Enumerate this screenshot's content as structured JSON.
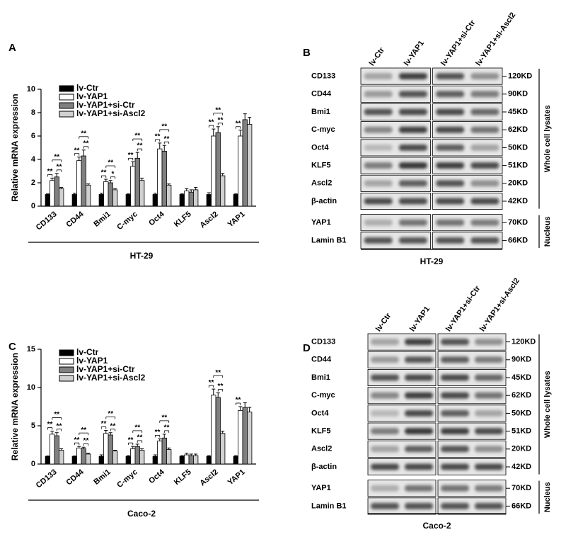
{
  "chart_data": [
    {
      "type": "bar",
      "panel": "A",
      "ylabel": "Relative mRNA expression",
      "xlabel": "HT-29",
      "categories": [
        "CD133",
        "CD44",
        "Bmi1",
        "C-myc",
        "Oct4",
        "KLF5",
        "Ascl2",
        "YAP1"
      ],
      "ylim": [
        0,
        10
      ],
      "yticks": [
        0,
        2,
        4,
        6,
        8,
        10
      ],
      "series": [
        {
          "name": "lv-Ctr",
          "color": "#000000",
          "values": [
            1,
            1,
            1,
            1,
            1,
            1,
            1,
            1
          ],
          "errors": [
            0.05,
            0.1,
            0.1,
            0.05,
            0.1,
            0.05,
            0.15,
            0.05
          ]
        },
        {
          "name": "lv-YAP1",
          "color": "#ffffff",
          "values": [
            2.2,
            3.9,
            2.1,
            3.4,
            4.9,
            1.3,
            6.0,
            6.0
          ],
          "errors": [
            0.2,
            0.3,
            0.2,
            0.4,
            0.5,
            0.2,
            0.6,
            0.5
          ]
        },
        {
          "name": "lv-YAP1+si-Ctr",
          "color": "#808080",
          "values": [
            2.5,
            4.3,
            2.0,
            4.1,
            4.7,
            1.2,
            6.3,
            7.4
          ],
          "errors": [
            0.3,
            0.5,
            0.2,
            0.5,
            0.5,
            0.2,
            0.5,
            0.5
          ]
        },
        {
          "name": "lv-YAP1+si-Ascl2",
          "color": "#d0d0d0",
          "values": [
            1.5,
            1.8,
            1.4,
            2.2,
            1.8,
            1.4,
            2.6,
            7.0
          ],
          "errors": [
            0.1,
            0.1,
            0.1,
            0.2,
            0.1,
            0.2,
            0.2,
            0.6
          ]
        }
      ],
      "significance": [
        [
          "**",
          "**",
          "**"
        ],
        [
          "**",
          "**",
          "**"
        ],
        [
          "**",
          "*",
          "**"
        ],
        [
          "**",
          "**",
          "**"
        ],
        [
          "**",
          "**",
          "**"
        ],
        [],
        [
          "**",
          "**",
          "**"
        ],
        [
          "**"
        ]
      ]
    },
    {
      "type": "bar",
      "panel": "C",
      "ylabel": "Relative mRNA expression",
      "xlabel": "Caco-2",
      "categories": [
        "CD133",
        "CD44",
        "Bmi1",
        "C-myc",
        "Oct4",
        "KLF5",
        "Ascl2",
        "YAP1"
      ],
      "ylim": [
        0,
        15
      ],
      "yticks": [
        0,
        5,
        10,
        15
      ],
      "series": [
        {
          "name": "lv-Ctr",
          "color": "#000000",
          "values": [
            1,
            1,
            1,
            1,
            1,
            1,
            1,
            1
          ],
          "errors": [
            0.05,
            0.05,
            0.2,
            0.1,
            0.2,
            0.1,
            0.1,
            0.1
          ]
        },
        {
          "name": "lv-YAP1",
          "color": "#ffffff",
          "values": [
            3.9,
            2.1,
            4.0,
            2.0,
            3.0,
            1.2,
            9.0,
            7.0
          ],
          "errors": [
            0.4,
            0.2,
            0.4,
            0.3,
            0.3,
            0.2,
            0.8,
            0.5
          ]
        },
        {
          "name": "lv-YAP1+si-Ctr",
          "color": "#808080",
          "values": [
            3.7,
            2.0,
            3.8,
            2.3,
            3.4,
            1.1,
            8.7,
            7.4
          ],
          "errors": [
            0.4,
            0.2,
            0.3,
            0.3,
            0.5,
            0.2,
            0.6,
            0.6
          ]
        },
        {
          "name": "lv-YAP1+si-Ascl2",
          "color": "#d0d0d0",
          "values": [
            1.8,
            1.3,
            1.7,
            1.8,
            1.9,
            1.1,
            4.0,
            6.8
          ],
          "errors": [
            0.2,
            0.1,
            0.1,
            0.2,
            0.2,
            0.2,
            0.3,
            0.6
          ]
        }
      ],
      "significance": [
        [
          "**",
          "**",
          "**"
        ],
        [
          "**",
          "**",
          "**"
        ],
        [
          "**",
          "**",
          "**"
        ],
        [
          "**",
          "**",
          "**"
        ],
        [
          "**",
          "**",
          "**"
        ],
        [],
        [
          "**",
          "**",
          "**"
        ],
        [
          "**"
        ]
      ]
    }
  ],
  "blots": [
    {
      "panel": "B",
      "cell_line": "HT-29",
      "lanes": [
        "lv-Ctr",
        "lv-YAP1",
        "lv-YAP1+si-Ctr",
        "lv-YAP1+si-Ascl2"
      ],
      "rows": [
        {
          "protein": "CD133",
          "size": "120KD"
        },
        {
          "protein": "CD44",
          "size": "90KD"
        },
        {
          "protein": "Bmi1",
          "size": "45KD"
        },
        {
          "protein": "C-myc",
          "size": "62KD"
        },
        {
          "protein": "Oct4",
          "size": "50KD"
        },
        {
          "protein": "KLF5",
          "size": "51KD"
        },
        {
          "protein": "Ascl2",
          "size": "20KD"
        },
        {
          "protein": "β-actin",
          "size": "42KD"
        },
        {
          "protein": "YAP1",
          "size": "70KD"
        },
        {
          "protein": "Lamin B1",
          "size": "66KD"
        }
      ],
      "groups": [
        "Whole cell lysates",
        "Nucleus"
      ]
    },
    {
      "panel": "D",
      "cell_line": "Caco-2",
      "lanes": [
        "lv-Ctr",
        "lv-YAP1",
        "lv-YAP1+si-Ctr",
        "lv-YAP1+si-Ascl2"
      ],
      "rows": [
        {
          "protein": "CD133",
          "size": "120KD"
        },
        {
          "protein": "CD44",
          "size": "90KD"
        },
        {
          "protein": "Bmi1",
          "size": "45KD"
        },
        {
          "protein": "C-myc",
          "size": "62KD"
        },
        {
          "protein": "Oct4",
          "size": "50KD"
        },
        {
          "protein": "KLF5",
          "size": "51KD"
        },
        {
          "protein": "Ascl2",
          "size": "20KD"
        },
        {
          "protein": "β-actin",
          "size": "42KD"
        },
        {
          "protein": "YAP1",
          "size": "70KD"
        },
        {
          "protein": "Lamin B1",
          "size": "66KD"
        }
      ],
      "groups": [
        "Whole cell lysates",
        "Nucleus"
      ]
    }
  ]
}
